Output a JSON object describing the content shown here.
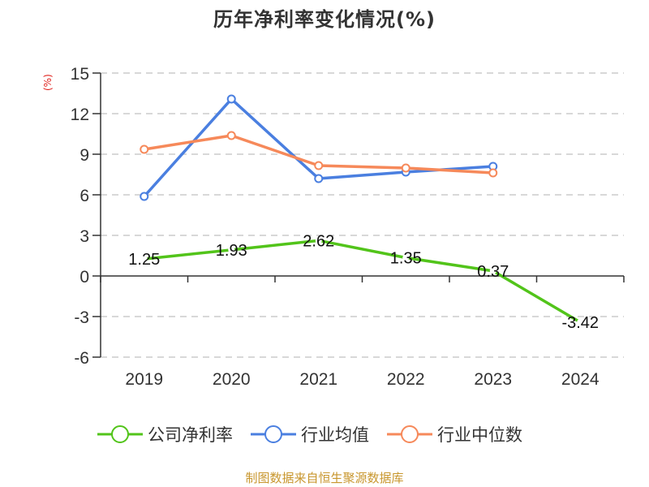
{
  "title": "历年净利率变化情况(%)",
  "footer": "制图数据来自恒生聚源数据库",
  "colors": {
    "company": "#52c41a",
    "industry_avg": "#4a7fe0",
    "industry_median": "#f6895a",
    "axis_label": "#e0201b",
    "footer": "#c8962d"
  },
  "chart_data": {
    "type": "line",
    "title": "历年净利率变化情况(%)",
    "xlabel": "",
    "ylabel": "(%)",
    "categories": [
      "2019",
      "2020",
      "2021",
      "2022",
      "2023",
      "2024"
    ],
    "ylim": [
      -6,
      15
    ],
    "yticks": [
      15,
      12,
      9,
      6,
      3,
      0,
      -3,
      -6
    ],
    "grid": true,
    "legend_position": "bottom",
    "series": [
      {
        "name": "公司净利率",
        "values": [
          1.25,
          1.93,
          2.62,
          1.35,
          0.37,
          -3.42
        ],
        "labels": [
          "1.25",
          "1.93",
          "2.62",
          "1.35",
          "0.37",
          "-3.42"
        ]
      },
      {
        "name": "行业均值",
        "values": [
          5.88,
          13.08,
          7.2,
          7.68,
          8.1,
          null
        ]
      },
      {
        "name": "行业中位数",
        "values": [
          9.36,
          10.38,
          8.16,
          7.98,
          7.62,
          null
        ]
      }
    ]
  },
  "legend": [
    {
      "label": "公司净利率"
    },
    {
      "label": "行业均值"
    },
    {
      "label": "行业中位数"
    }
  ]
}
